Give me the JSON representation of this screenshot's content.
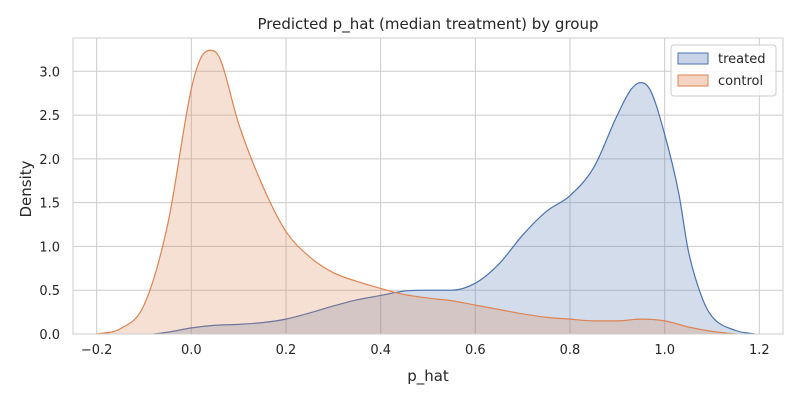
{
  "chart_data": {
    "type": "area",
    "title": "Predicted p_hat (median treatment) by group",
    "xlabel": "p_hat",
    "ylabel": "Density",
    "xlim": [
      -0.25,
      1.25
    ],
    "ylim": [
      0,
      3.38
    ],
    "xticks": [
      -0.2,
      0.0,
      0.2,
      0.4,
      0.6,
      0.8,
      1.0,
      1.2
    ],
    "xtick_labels": [
      "−0.2",
      "0.0",
      "0.2",
      "0.4",
      "0.6",
      "0.8",
      "1.0",
      "1.2"
    ],
    "yticks": [
      0.0,
      0.5,
      1.0,
      1.5,
      2.0,
      2.5,
      3.0
    ],
    "ytick_labels": [
      "0.0",
      "0.5",
      "1.0",
      "1.5",
      "2.0",
      "2.5",
      "3.0"
    ],
    "grid": true,
    "legend_position": "top-right",
    "series": [
      {
        "name": "treated",
        "color": "#4c72b0",
        "fill": "#c9d3e8",
        "x": [
          -0.08,
          -0.05,
          0.0,
          0.05,
          0.1,
          0.15,
          0.2,
          0.25,
          0.3,
          0.35,
          0.4,
          0.45,
          0.5,
          0.55,
          0.6,
          0.65,
          0.7,
          0.75,
          0.8,
          0.85,
          0.9,
          0.93,
          0.95,
          0.97,
          1.0,
          1.03,
          1.05,
          1.08,
          1.1,
          1.15,
          1.19
        ],
        "y": [
          0.0,
          0.02,
          0.07,
          0.1,
          0.11,
          0.13,
          0.17,
          0.24,
          0.32,
          0.39,
          0.44,
          0.49,
          0.5,
          0.5,
          0.58,
          0.8,
          1.13,
          1.4,
          1.58,
          1.9,
          2.5,
          2.8,
          2.87,
          2.78,
          2.28,
          1.6,
          0.95,
          0.4,
          0.2,
          0.04,
          0.0
        ]
      },
      {
        "name": "control",
        "color": "#dd8452",
        "fill": "#f4d5c4",
        "x": [
          -0.2,
          -0.15,
          -0.1,
          -0.05,
          0.0,
          0.02,
          0.04,
          0.06,
          0.1,
          0.15,
          0.2,
          0.25,
          0.3,
          0.35,
          0.4,
          0.45,
          0.5,
          0.55,
          0.6,
          0.65,
          0.7,
          0.75,
          0.8,
          0.85,
          0.9,
          0.95,
          1.0,
          1.05,
          1.1,
          1.15
        ],
        "y": [
          0.0,
          0.06,
          0.33,
          1.25,
          2.8,
          3.15,
          3.24,
          3.15,
          2.4,
          1.7,
          1.17,
          0.88,
          0.7,
          0.6,
          0.52,
          0.45,
          0.41,
          0.38,
          0.33,
          0.28,
          0.23,
          0.19,
          0.17,
          0.15,
          0.15,
          0.17,
          0.15,
          0.08,
          0.03,
          0.0
        ]
      }
    ]
  }
}
